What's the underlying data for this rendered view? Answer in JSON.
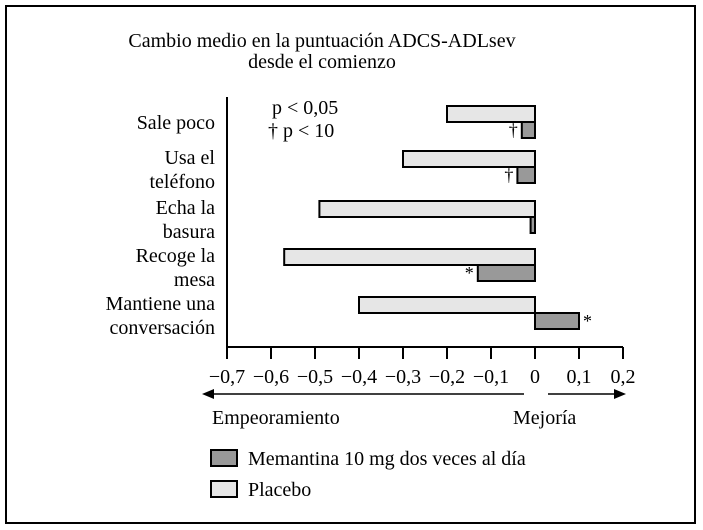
{
  "chart_data": {
    "type": "bar",
    "orientation": "horizontal",
    "title": "Cambio medio en la puntuación ADCS-ADLsev",
    "subtitle": "desde el comienzo",
    "categories": [
      "Sale poco",
      "Usa el teléfono",
      "Echa la basura",
      "Recoge la mesa",
      "Mantiene una conversación"
    ],
    "series": [
      {
        "name": "Placebo",
        "color": "#e6e6e6",
        "values": [
          -0.2,
          -0.3,
          -0.49,
          -0.57,
          -0.4
        ]
      },
      {
        "name": "Memantina 10 mg dos veces al día",
        "color": "#999999",
        "values": [
          -0.03,
          -0.04,
          -0.01,
          -0.13,
          0.1
        ]
      }
    ],
    "markers": [
      {
        "category": "Sale poco",
        "series": "Memantina 10 mg dos veces al día",
        "symbol": "†"
      },
      {
        "category": "Usa el teléfono",
        "series": "Memantina 10 mg dos veces al día",
        "symbol": "†"
      },
      {
        "category": "Recoge la mesa",
        "series": "Memantina 10 mg dos veces al día",
        "symbol": "*"
      },
      {
        "category": "Mantiene una conversación",
        "series": "Memantina 10 mg dos veces al día",
        "symbol": "*"
      }
    ],
    "significance": {
      "line1": "p < 0,05",
      "line2": "† p < 10"
    },
    "xlim": [
      -0.7,
      0.2
    ],
    "xticks": [
      -0.7,
      -0.6,
      -0.5,
      -0.4,
      -0.3,
      -0.2,
      -0.1,
      0,
      0.1,
      0.2
    ],
    "xtick_labels": [
      "−0,7",
      "−0,6",
      "−0,5",
      "−0,4",
      "−0,3",
      "−0,2",
      "−0,1",
      "0",
      "0,1",
      "0,2"
    ],
    "direction_left": "Empeoramiento",
    "direction_right": "Mejoría",
    "legend_position": "bottom-left",
    "grid": false
  }
}
